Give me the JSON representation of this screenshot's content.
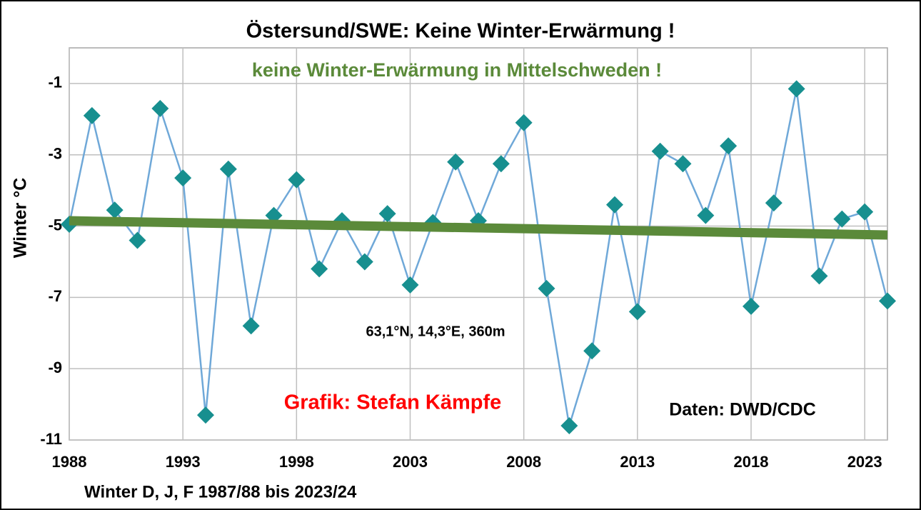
{
  "chart_data": {
    "type": "line",
    "title": "Östersund/SWE:  Keine Winter-Erwärmung  !",
    "ylabel": "Winter °C",
    "xlabel": "Winter D, J, F 1987/88 bis 2023/24",
    "annotations": [
      {
        "text": "keine Winter-Erwärmung in Mittelschweden !",
        "color": "#5b8a3a"
      },
      {
        "text": "63,1°N, 14,3°E, 360m",
        "color": "#000000"
      },
      {
        "text": "Grafik: Stefan Kämpfe",
        "color": "#ff0000"
      },
      {
        "text": "Daten: DWD/CDC",
        "color": "#000000"
      }
    ],
    "xlim": [
      1988,
      2024
    ],
    "xticks": [
      1988,
      1993,
      1998,
      2003,
      2008,
      2013,
      2018,
      2023
    ],
    "ylim": [
      -11,
      0
    ],
    "yticks": [
      -11,
      -9,
      -7,
      -5,
      -3,
      -1
    ],
    "grid": true,
    "x": [
      1988,
      1989,
      1990,
      1991,
      1992,
      1993,
      1994,
      1995,
      1996,
      1997,
      1998,
      1999,
      2000,
      2001,
      2002,
      2003,
      2004,
      2005,
      2006,
      2007,
      2008,
      2009,
      2010,
      2011,
      2012,
      2013,
      2014,
      2015,
      2016,
      2017,
      2018,
      2019,
      2020,
      2021,
      2022,
      2023,
      2024
    ],
    "series": [
      {
        "color": "#6fa8d8",
        "marker_color": "#178f8f",
        "values": [
          -4.95,
          -1.9,
          -4.55,
          -5.4,
          -1.7,
          -3.65,
          -10.3,
          -3.4,
          -7.8,
          -4.7,
          -3.7,
          -6.2,
          -4.85,
          -6.0,
          -4.65,
          -6.65,
          -4.9,
          -3.2,
          -4.85,
          -3.25,
          -2.1,
          -6.75,
          -10.6,
          -8.5,
          -4.4,
          -7.4,
          -2.9,
          -3.25,
          -4.7,
          -2.75,
          -7.25,
          -4.35,
          -1.15,
          -6.4,
          -4.8,
          -4.6,
          -7.1
        ]
      }
    ],
    "trend": {
      "color": "#5b8a3a",
      "x": [
        1988,
        2024
      ],
      "values": [
        -4.85,
        -5.25
      ]
    }
  }
}
